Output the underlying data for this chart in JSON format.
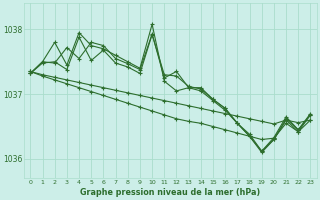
{
  "title": "Graphe pression niveau de la mer (hPa)",
  "bg_color": "#cceee8",
  "grid_color": "#aaddcc",
  "line_color": "#2d6e2d",
  "ylim": [
    1035.7,
    1038.4
  ],
  "yticks": [
    1036,
    1037,
    1038
  ],
  "xlim": [
    -0.5,
    23.5
  ],
  "xticks": [
    0,
    1,
    2,
    3,
    4,
    5,
    6,
    7,
    8,
    9,
    10,
    11,
    12,
    13,
    14,
    15,
    16,
    17,
    18,
    19,
    20,
    21,
    22,
    23
  ],
  "series": [
    {
      "x": [
        0,
        1,
        2,
        3,
        4,
        5,
        6,
        7,
        8,
        9,
        10,
        11,
        12,
        13,
        14,
        15,
        16,
        17,
        18,
        19,
        20,
        21,
        22,
        23
      ],
      "y": [
        1037.35,
        1037.3,
        1037.26,
        1037.22,
        1037.18,
        1037.14,
        1037.1,
        1037.06,
        1037.02,
        1036.98,
        1036.94,
        1036.9,
        1036.86,
        1036.82,
        1036.78,
        1036.74,
        1036.7,
        1036.66,
        1036.62,
        1036.58,
        1036.54,
        1036.6,
        1036.56,
        1036.6
      ]
    },
    {
      "x": [
        0,
        1,
        2,
        3,
        4,
        5,
        6,
        7,
        8,
        9,
        10,
        11,
        12,
        13,
        14,
        15,
        16,
        17,
        18,
        19,
        20,
        21,
        22,
        23
      ],
      "y": [
        1037.35,
        1037.28,
        1037.22,
        1037.16,
        1037.1,
        1037.04,
        1036.98,
        1036.92,
        1036.86,
        1036.8,
        1036.74,
        1036.68,
        1036.62,
        1036.58,
        1036.55,
        1036.5,
        1036.45,
        1036.4,
        1036.35,
        1036.3,
        1036.32,
        1036.55,
        1036.42,
        1036.6
      ]
    },
    {
      "x": [
        0,
        1,
        2,
        3,
        4,
        5,
        6,
        7,
        8,
        9,
        10,
        11,
        12,
        13,
        14,
        15,
        16,
        17,
        18,
        19,
        20,
        21,
        22,
        23
      ],
      "y": [
        1037.32,
        1037.5,
        1037.8,
        1037.45,
        1037.95,
        1037.75,
        1037.7,
        1037.6,
        1037.5,
        1037.4,
        1038.08,
        1037.2,
        1037.05,
        1037.1,
        1037.05,
        1036.9,
        1036.75,
        1036.55,
        1036.35,
        1036.1,
        1036.3,
        1036.6,
        1036.42,
        1036.68
      ]
    },
    {
      "x": [
        0,
        1,
        2,
        3,
        4,
        5,
        6,
        7,
        8,
        9,
        10,
        11,
        12,
        13,
        14,
        15,
        16,
        17,
        18,
        19,
        20,
        21,
        22,
        23
      ],
      "y": [
        1037.32,
        1037.5,
        1037.48,
        1037.72,
        1037.55,
        1037.8,
        1037.75,
        1037.55,
        1037.47,
        1037.38,
        1037.93,
        1037.25,
        1037.35,
        1037.1,
        1037.1,
        1036.92,
        1036.78,
        1036.55,
        1036.38,
        1036.12,
        1036.33,
        1036.65,
        1036.45,
        1036.7
      ]
    },
    {
      "x": [
        0,
        1,
        2,
        3,
        4,
        5,
        6,
        7,
        8,
        9,
        10,
        11,
        12,
        13,
        14,
        15,
        16,
        17,
        18,
        19,
        20,
        21,
        22,
        23
      ],
      "y": [
        1037.32,
        1037.48,
        1037.5,
        1037.38,
        1037.88,
        1037.52,
        1037.68,
        1037.48,
        1037.42,
        1037.32,
        1037.92,
        1037.3,
        1037.28,
        1037.12,
        1037.08,
        1036.92,
        1036.78,
        1036.55,
        1036.35,
        1036.12,
        1036.3,
        1036.62,
        1036.45,
        1036.68
      ]
    }
  ]
}
